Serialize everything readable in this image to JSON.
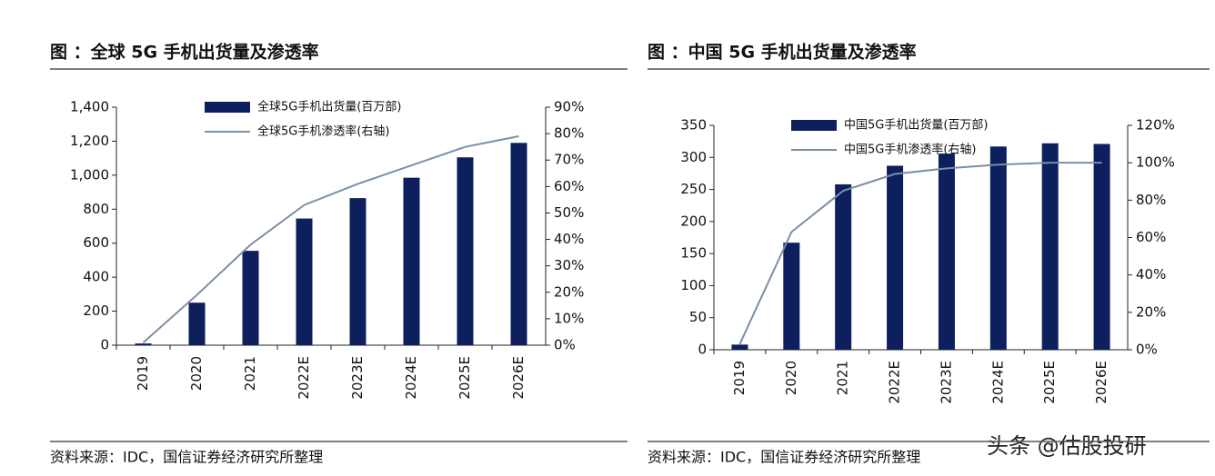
{
  "chart_data": [
    {
      "type": "bar-line",
      "title": "图 ：全球 5G 手机出货量及渗透率",
      "categories": [
        "2019",
        "2020",
        "2021",
        "2022E",
        "2023E",
        "2024E",
        "2025E",
        "2026E"
      ],
      "series": [
        {
          "name": "全球5G手机出货量(百万部)",
          "type": "bar",
          "color": "#0d1f5c",
          "values": [
            10,
            250,
            555,
            745,
            865,
            985,
            1105,
            1190
          ]
        },
        {
          "name": "全球5G手机渗透率(右轴)",
          "type": "line",
          "axis": "y2",
          "color": "#7a8fa6",
          "values": [
            1,
            19,
            38,
            53,
            61,
            68,
            75,
            79
          ]
        }
      ],
      "ylim": [
        0,
        1400
      ],
      "yticks": [
        0,
        200,
        400,
        600,
        800,
        {
          "value": 1000,
          "label": "1,000"
        },
        {
          "value": 1200,
          "label": "1,200"
        },
        {
          "value": 1400,
          "label": "1,400"
        }
      ],
      "y2lim": [
        0,
        90
      ],
      "y2ticks": [
        {
          "value": 0,
          "label": "0%"
        },
        {
          "value": 10,
          "label": "10%"
        },
        {
          "value": 20,
          "label": "20%"
        },
        {
          "value": 30,
          "label": "30%"
        },
        {
          "value": 40,
          "label": "40%"
        },
        {
          "value": 50,
          "label": "50%"
        },
        {
          "value": 60,
          "label": "60%"
        },
        {
          "value": 70,
          "label": "70%"
        },
        {
          "value": 80,
          "label": "80%"
        },
        {
          "value": 90,
          "label": "90%"
        }
      ],
      "source": "资料来源：IDC，国信证券经济研究所整理"
    },
    {
      "type": "bar-line",
      "title": "图 ：中国 5G 手机出货量及渗透率",
      "categories": [
        "2019",
        "2020",
        "2021",
        "2022E",
        "2023E",
        "2024E",
        "2025E",
        "2026E"
      ],
      "series": [
        {
          "name": "中国5G手机出货量(百万部)",
          "type": "bar",
          "color": "#0d1f5c",
          "values": [
            8,
            167,
            258,
            287,
            306,
            317,
            322,
            321
          ]
        },
        {
          "name": "中国5G手机渗透率(右轴)",
          "type": "line",
          "axis": "y2",
          "color": "#7a8fa6",
          "values": [
            3,
            63,
            85,
            94,
            97,
            99,
            100,
            100
          ]
        }
      ],
      "ylim": [
        0,
        350
      ],
      "yticks": [
        0,
        50,
        100,
        150,
        200,
        250,
        300,
        350
      ],
      "y2lim": [
        0,
        120
      ],
      "y2ticks": [
        {
          "value": 0,
          "label": "0%"
        },
        {
          "value": 20,
          "label": "20%"
        },
        {
          "value": 40,
          "label": "40%"
        },
        {
          "value": 60,
          "label": "60%"
        },
        {
          "value": 80,
          "label": "80%"
        },
        {
          "value": 100,
          "label": "100%"
        },
        {
          "value": 120,
          "label": "120%"
        }
      ],
      "source": "资料来源：IDC，国信证券经济研究所整理"
    }
  ],
  "watermark": "头条 @估股投研"
}
